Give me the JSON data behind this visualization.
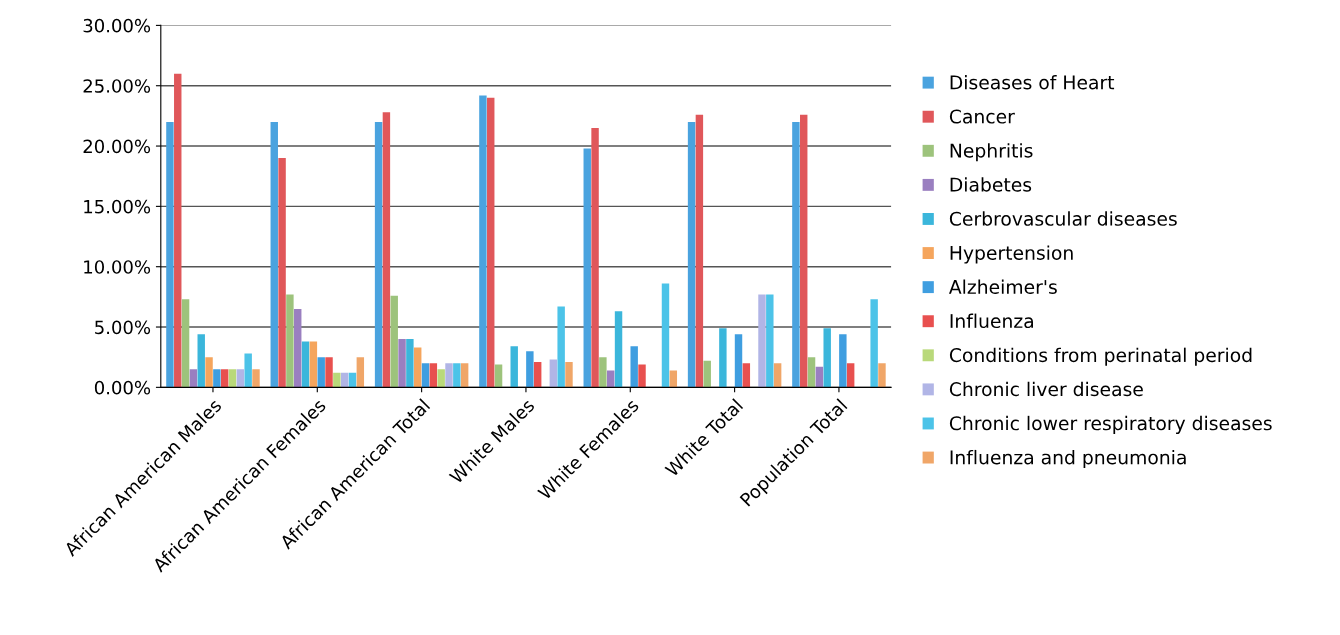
{
  "chart_data": {
    "type": "bar",
    "categories": [
      "African American Males",
      "African American Females",
      "African American Total",
      "White Males",
      "White Females",
      "White Total",
      "Population Total"
    ],
    "series": [
      {
        "name": "Diseases of Heart",
        "color": "#4aa3df",
        "values": [
          22,
          22,
          22,
          24.2,
          19.8,
          22,
          22
        ]
      },
      {
        "name": "Cancer",
        "color": "#e0575a",
        "values": [
          26,
          19,
          22.8,
          24,
          21.5,
          22.6,
          22.6
        ]
      },
      {
        "name": "Nephritis",
        "color": "#9dc37c",
        "values": [
          7.3,
          7.7,
          7.6,
          1.9,
          2.5,
          2.2,
          2.5
        ]
      },
      {
        "name": "Diabetes",
        "color": "#9a7fc0",
        "values": [
          1.5,
          6.5,
          4,
          null,
          1.4,
          null,
          1.7
        ]
      },
      {
        "name": "Cerbrovascular diseases",
        "color": "#3bb6db",
        "values": [
          4.4,
          3.8,
          4,
          3.4,
          6.3,
          4.9,
          4.9
        ]
      },
      {
        "name": "Hypertension",
        "color": "#f5a55d",
        "values": [
          2.5,
          3.8,
          3.3,
          null,
          null,
          null,
          null
        ]
      },
      {
        "name": "Alzheimer's",
        "color": "#3f9ee0",
        "values": [
          1.5,
          2.5,
          2,
          3,
          3.4,
          4.4,
          4.4
        ]
      },
      {
        "name": "Influenza",
        "color": "#e8504f",
        "values": [
          1.5,
          2.5,
          2,
          2.1,
          1.9,
          2,
          2
        ]
      },
      {
        "name": "Conditions from perinatal period",
        "color": "#b9d97a",
        "values": [
          1.5,
          1.2,
          1.5,
          null,
          null,
          null,
          null
        ]
      },
      {
        "name": "Chronic liver disease",
        "color": "#b1b5e6",
        "values": [
          1.5,
          1.2,
          2,
          2.3,
          null,
          7.7,
          null
        ]
      },
      {
        "name": "Chronic lower respiratory diseases",
        "color": "#4cc3e8",
        "values": [
          2.8,
          1.2,
          2,
          6.7,
          8.6,
          7.7,
          7.3
        ]
      },
      {
        "name": "Influenza and pneumonia",
        "color": "#f0a668",
        "values": [
          1.5,
          2.5,
          2,
          2.1,
          1.4,
          2,
          2
        ]
      }
    ],
    "ylim": [
      0,
      30
    ],
    "yticks": [
      {
        "value": 0,
        "label": "0.00%"
      },
      {
        "value": 5,
        "label": "5.00%"
      },
      {
        "value": 10,
        "label": "10.00%"
      },
      {
        "value": 15,
        "label": "15.00%"
      },
      {
        "value": 20,
        "label": "20.00%"
      },
      {
        "value": 25,
        "label": "25.00%"
      },
      {
        "value": 30,
        "label": "30.00%"
      }
    ],
    "grid": "y",
    "legend": "right"
  }
}
